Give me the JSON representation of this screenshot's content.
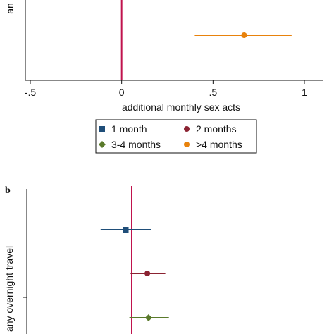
{
  "chart_data": [
    {
      "type": "scatter",
      "panel": "a",
      "xlabel": "additional monthly sex acts",
      "ylabel": "an",
      "xlim": [
        -0.5,
        1
      ],
      "x_ticks": [
        {
          "value": -0.5,
          "label": "-.5"
        },
        {
          "value": 0,
          "label": "0"
        },
        {
          "value": 0.5,
          "label": ".5"
        },
        {
          "value": 1,
          "label": "1"
        }
      ],
      "reference_line_x": 0,
      "series": [
        {
          "name": ">4 months",
          "estimate": 0.67,
          "ci": [
            0.4,
            0.93
          ]
        }
      ],
      "legend": [
        {
          "name": "1 month",
          "marker": "square",
          "color": "#1f4e79"
        },
        {
          "name": "2 months",
          "marker": "circle",
          "color": "#8b2332"
        },
        {
          "name": "3-4 months",
          "marker": "diamond",
          "color": "#5a7a2b"
        },
        {
          "name": ">4 months",
          "marker": "circle",
          "color": "#e8820c"
        }
      ],
      "legend_position": "bottom"
    },
    {
      "type": "scatter",
      "panel": "b",
      "panel_label": "b",
      "ylabel": "any overnight travel",
      "reference_line_x": 0,
      "series": [
        {
          "name": "1 month",
          "estimate": -0.05,
          "ci": [
            -0.26,
            0.16
          ]
        },
        {
          "name": "2 months",
          "estimate": 0.13,
          "ci": [
            -0.01,
            0.28
          ]
        },
        {
          "name": "3-4 months",
          "estimate": 0.14,
          "ci": [
            -0.02,
            0.31
          ]
        }
      ]
    }
  ]
}
